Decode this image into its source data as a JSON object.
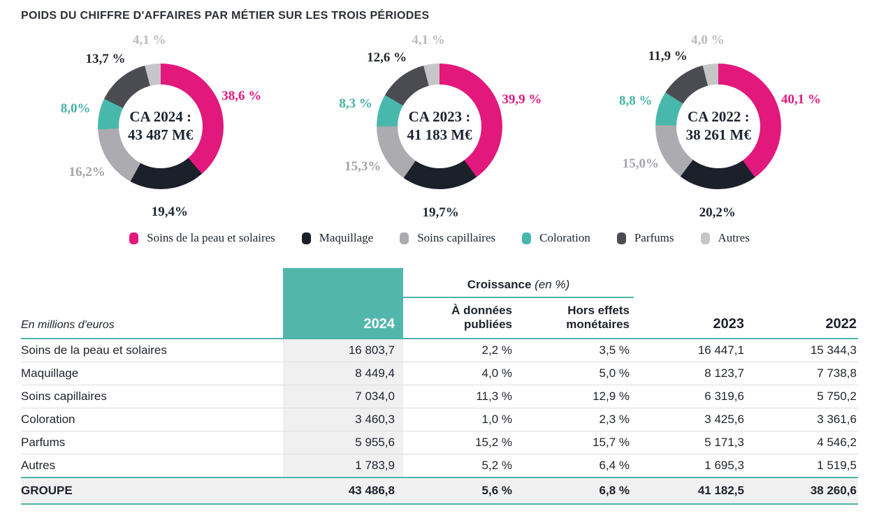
{
  "title": "POIDS DU CHIFFRE D'AFFAIRES PAR MÉTIER SUR LES TROIS PÉRIODES",
  "colors": {
    "accent": "#4db5ab",
    "text_dark": "#1d2430",
    "teal_block": "#52b6ac",
    "col2024_bg": "#f0f0f0",
    "groupe_bg": "#f1f1f1",
    "row_border": "#dcdcdc"
  },
  "legend": [
    {
      "label": "Soins de la peau et solaires",
      "color": "#e2187d"
    },
    {
      "label": "Maquillage",
      "color": "#1b202a"
    },
    {
      "label": "Soins capillaires",
      "color": "#acabb0"
    },
    {
      "label": "Coloration",
      "color": "#49b8ac"
    },
    {
      "label": "Parfums",
      "color": "#4b4b52"
    },
    {
      "label": "Autres",
      "color": "#c6c5c8"
    }
  ],
  "chart_data": [
    {
      "type": "donut",
      "center_label": "CA 2024 :",
      "center_value": "43 487 M€",
      "segments": [
        {
          "name": "Soins de la peau et solaires",
          "value": 38.6,
          "label": "38,6 %",
          "color": "#e2187d",
          "label_color": "#e2187d"
        },
        {
          "name": "Maquillage",
          "value": 19.4,
          "label": "19,4%",
          "color": "#1b202a",
          "label_color": "#1d2430"
        },
        {
          "name": "Soins capillaires",
          "value": 16.2,
          "label": "16,2%",
          "color": "#acabb0",
          "label_color": "#a5a4a9"
        },
        {
          "name": "Coloration",
          "value": 8.0,
          "label": "8,0%",
          "color": "#49b8ac",
          "label_color": "#44b2a6"
        },
        {
          "name": "Parfums",
          "value": 13.7,
          "label": "13,7 %",
          "color": "#4b4b52",
          "label_color": "#24272f"
        },
        {
          "name": "Autres",
          "value": 4.1,
          "label": "4,1 %",
          "color": "#c6c5c8",
          "label_color": "#bcbbbf"
        }
      ]
    },
    {
      "type": "donut",
      "center_label": "CA 2023 :",
      "center_value": "41 183 M€",
      "segments": [
        {
          "name": "Soins de la peau et solaires",
          "value": 39.9,
          "label": "39,9 %",
          "color": "#e2187d",
          "label_color": "#e2187d"
        },
        {
          "name": "Maquillage",
          "value": 19.7,
          "label": "19,7%",
          "color": "#1b202a",
          "label_color": "#1d2430"
        },
        {
          "name": "Soins capillaires",
          "value": 15.3,
          "label": "15,3%",
          "color": "#acabb0",
          "label_color": "#a5a4a9"
        },
        {
          "name": "Coloration",
          "value": 8.3,
          "label": "8,3 %",
          "color": "#49b8ac",
          "label_color": "#44b2a6"
        },
        {
          "name": "Parfums",
          "value": 12.6,
          "label": "12,6 %",
          "color": "#4b4b52",
          "label_color": "#24272f"
        },
        {
          "name": "Autres",
          "value": 4.1,
          "label": "4,1 %",
          "color": "#c6c5c8",
          "label_color": "#bcbbbf"
        }
      ]
    },
    {
      "type": "donut",
      "center_label": "CA 2022 :",
      "center_value": "38 261 M€",
      "segments": [
        {
          "name": "Soins de la peau et solaires",
          "value": 40.1,
          "label": "40,1 %",
          "color": "#e2187d",
          "label_color": "#e2187d"
        },
        {
          "name": "Maquillage",
          "value": 20.2,
          "label": "20,2%",
          "color": "#1b202a",
          "label_color": "#1d2430"
        },
        {
          "name": "Soins capillaires",
          "value": 15.0,
          "label": "15,0%",
          "color": "#acabb0",
          "label_color": "#a5a4a9"
        },
        {
          "name": "Coloration",
          "value": 8.8,
          "label": "8,8 %",
          "color": "#49b8ac",
          "label_color": "#44b2a6"
        },
        {
          "name": "Parfums",
          "value": 11.9,
          "label": "11,9 %",
          "color": "#4b4b52",
          "label_color": "#24272f"
        },
        {
          "name": "Autres",
          "value": 4.0,
          "label": "4,0 %",
          "color": "#c6c5c8",
          "label_color": "#bcbbbf"
        }
      ]
    }
  ],
  "table": {
    "unit_label": "En millions d'euros",
    "year_cols": [
      "2024",
      "2023",
      "2022"
    ],
    "growth_group": {
      "title": "Croissance",
      "suffix": " (en %)",
      "sub1": [
        "À données",
        "publiées"
      ],
      "sub2": [
        "Hors effets",
        "monétaires"
      ]
    },
    "rows": [
      {
        "label": "Soins de la peau et solaires",
        "y2024": "16 803,7",
        "growth_published": "2,2 %",
        "growth_fx": "3,5 %",
        "y2023": "16 447,1",
        "y2022": "15 344,3"
      },
      {
        "label": "Maquillage",
        "y2024": "8 449,4",
        "growth_published": "4,0 %",
        "growth_fx": "5,0 %",
        "y2023": "8 123,7",
        "y2022": "7 738,8"
      },
      {
        "label": "Soins capillaires",
        "y2024": "7 034,0",
        "growth_published": "11,3 %",
        "growth_fx": "12,9 %",
        "y2023": "6 319,6",
        "y2022": "5 750,2"
      },
      {
        "label": "Coloration",
        "y2024": "3 460,3",
        "growth_published": "1,0 %",
        "growth_fx": "2,3 %",
        "y2023": "3 425,6",
        "y2022": "3 361,6"
      },
      {
        "label": "Parfums",
        "y2024": "5 955,6",
        "growth_published": "15,2 %",
        "growth_fx": "15,7 %",
        "y2023": "5 171,3",
        "y2022": "4 546,2"
      },
      {
        "label": "Autres",
        "y2024": "1 783,9",
        "growth_published": "5,2 %",
        "growth_fx": "6,4 %",
        "y2023": "1 695,3",
        "y2022": "1 519,5"
      }
    ],
    "total_row": {
      "label": "GROUPE",
      "y2024": "43 486,8",
      "growth_published": "5,6 %",
      "growth_fx": "6,8 %",
      "y2023": "41 182,5",
      "y2022": "38 260,6"
    }
  }
}
